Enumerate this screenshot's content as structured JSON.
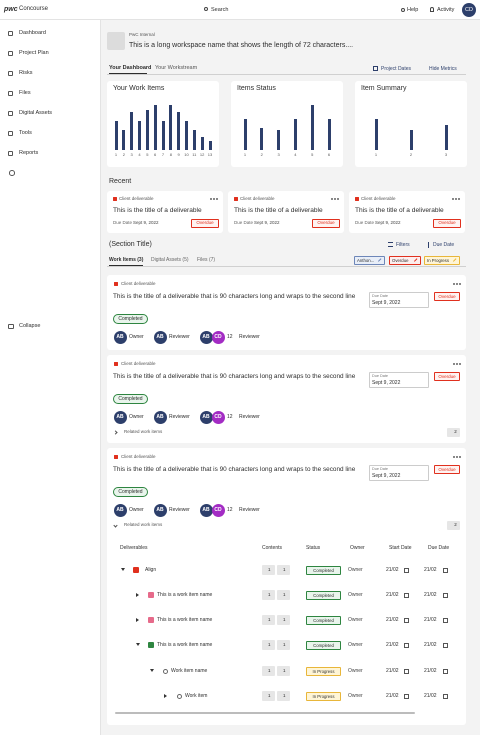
{
  "header": {
    "logo": "pwc",
    "app": "Concourse",
    "search": "Search",
    "help": "Help",
    "activity": "Activity",
    "avatar": "CD"
  },
  "sidebar": {
    "items": [
      "Dashboard",
      "Project Plan",
      "Risks",
      "Files",
      "Digital Assets",
      "Tools",
      "Reports"
    ],
    "collapse": "Collapse"
  },
  "workspace": {
    "tag": "PwC Internal",
    "name": "This is a long workspace name that shows the length of 72 characters...."
  },
  "tabs": {
    "items": [
      "Your Dashboard",
      "Your Workstream"
    ],
    "project_dates": "Project Dates",
    "hide_metrics": "Hide Metrics"
  },
  "metrics": [
    {
      "title": "Your Work Items",
      "categories": [
        "1",
        "2",
        "3",
        "4",
        "5",
        "6",
        "7",
        "8",
        "9",
        "10",
        "11",
        "12",
        "13"
      ],
      "values": [
        65,
        45,
        85,
        65,
        90,
        100,
        65,
        100,
        85,
        65,
        45,
        30,
        20
      ]
    },
    {
      "title": "Items Status",
      "categories": [
        "1",
        "2",
        "3",
        "4",
        "5",
        "6"
      ],
      "values": [
        70,
        50,
        45,
        70,
        100,
        70
      ]
    },
    {
      "title": "Item Summary",
      "categories": [
        "1",
        "2",
        "3"
      ],
      "values": [
        70,
        45,
        55
      ]
    }
  ],
  "recent": {
    "title": "Recent",
    "cards": [
      {
        "type": "Client deliverable",
        "title": "This is the title of a deliverable",
        "due_label": "Due Date",
        "due": "Sept 9, 2022",
        "status": "Overdue"
      },
      {
        "type": "Client deliverable",
        "title": "This is the title of a deliverable",
        "due_label": "Due Date",
        "due": "Sept 9, 2022",
        "status": "Overdue"
      },
      {
        "type": "Client deliverable",
        "title": "This is the title of a deliverable",
        "due_label": "Due Date",
        "due": "Sept 9, 2022",
        "status": "Overdue"
      }
    ]
  },
  "section": {
    "title": "(Section Title)",
    "filters": "Filters",
    "sort": "Due Date",
    "tabs": [
      "Work Items (3)",
      "Digital Assets (5)",
      "Files (7)"
    ],
    "chips": [
      "Anthon...",
      "Overdue",
      "In Progress"
    ]
  },
  "work_items": [
    {
      "type": "Client deliverable",
      "title": "This is the title of a deliverable that is 90 characters long and wraps to the second line",
      "due_label": "Due Date",
      "due": "Sept 9, 2022",
      "status": "Overdue",
      "state": "Completed",
      "owner_initials": "AB",
      "owner": "Owner",
      "reviewer_initials": "AB",
      "reviewer": "Reviewer",
      "group": [
        "AB",
        "CD"
      ],
      "count": "12",
      "reviewers": "Reviewer"
    },
    {
      "type": "Client deliverable",
      "title": "This is the title of a deliverable that is 90 characters long and wraps to the second line",
      "due_label": "Due Date",
      "due": "Sept 9, 2022",
      "status": "Overdue",
      "state": "Completed",
      "owner_initials": "AB",
      "owner": "Owner",
      "reviewer_initials": "AB",
      "reviewer": "Reviewer",
      "group": [
        "AB",
        "CD"
      ],
      "count": "12",
      "reviewers": "Reviewer",
      "related": "Related work items",
      "related_count": "2"
    },
    {
      "type": "Client deliverable",
      "title": "This is the title of a deliverable that is 90 characters long and wraps to the second line",
      "due_label": "Due Date",
      "due": "Sept 9, 2022",
      "status": "Overdue",
      "state": "Completed",
      "owner_initials": "AB",
      "owner": "Owner",
      "reviewer_initials": "AB",
      "reviewer": "Reviewer",
      "group": [
        "AB",
        "CD"
      ],
      "count": "12",
      "reviewers": "Reviewer",
      "related": "Related work items",
      "related_count": "2"
    }
  ],
  "table": {
    "headers": [
      "Deliverables",
      "Contents",
      "Status",
      "Owner",
      "Start Date",
      "Due Date"
    ],
    "rows": [
      {
        "name": "Align",
        "files": "1",
        "comments": "1",
        "status": "Completed",
        "owner": "Owner",
        "start": "21/02",
        "due": "21/02"
      },
      {
        "name": "This is a work item name",
        "files": "1",
        "comments": "1",
        "status": "Completed",
        "owner": "Owner",
        "start": "21/02",
        "due": "21/02"
      },
      {
        "name": "This is a work item name",
        "files": "1",
        "comments": "1",
        "status": "Completed",
        "owner": "Owner",
        "start": "21/02",
        "due": "21/02"
      },
      {
        "name": "This is a work item name",
        "files": "1",
        "comments": "1",
        "status": "Completed",
        "owner": "Owner",
        "start": "21/02",
        "due": "21/02"
      },
      {
        "name": "Work item name",
        "files": "1",
        "comments": "1",
        "status": "In Progress",
        "owner": "Owner",
        "start": "21/02",
        "due": "21/02"
      },
      {
        "name": "Work item",
        "files": "1",
        "comments": "1",
        "status": "In Progress",
        "owner": "Owner",
        "start": "21/02",
        "due": "21/02"
      }
    ]
  }
}
